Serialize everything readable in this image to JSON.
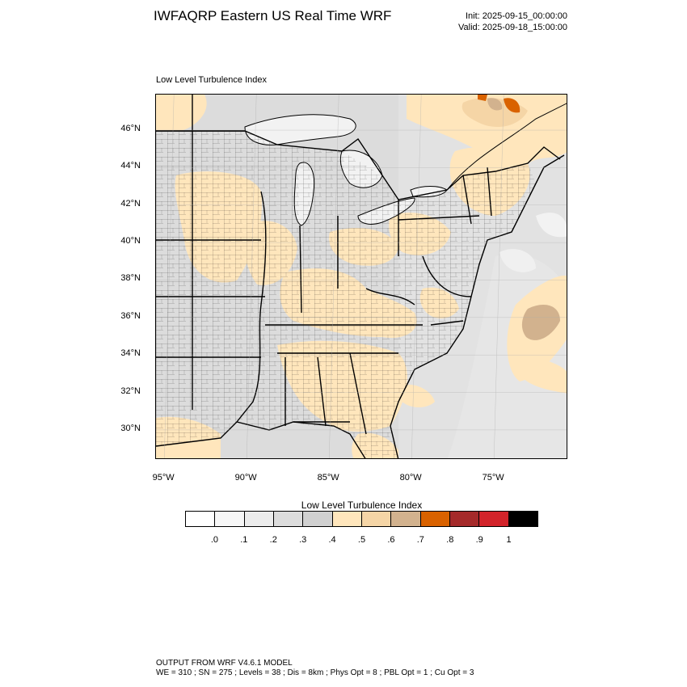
{
  "header": {
    "title": "IWFAQRP Eastern US Real Time WRF",
    "init": "Init: 2025-09-15_00:00:00",
    "valid": "Valid: 2025-09-18_15:00:00"
  },
  "map": {
    "subtitle": "Low Level Turbulence Index",
    "lat_labels": [
      "46°N",
      "44°N",
      "42°N",
      "40°N",
      "38°N",
      "36°N",
      "34°N",
      "32°N",
      "30°N"
    ],
    "lat_values": [
      46,
      44,
      42,
      40,
      38,
      36,
      34,
      32,
      30
    ],
    "lon_labels": [
      "95°W",
      "90°W",
      "85°W",
      "80°W",
      "75°W"
    ],
    "lon_values": [
      -95,
      -90,
      -85,
      -80,
      -75
    ],
    "extent": {
      "lon_min": -95.5,
      "lon_max": -70.5,
      "lat_min": 28.4,
      "lat_max": 47.9
    },
    "colors": {
      "land_gray": "#dcdcdc",
      "light_gray": "#ececec",
      "water": "#f2f2f2",
      "tan": "#ffe6bc",
      "tan_dark": "#f5d5a6",
      "brown": "#d2b28e",
      "orange": "#d96200",
      "state_border": "#000000",
      "county_border": "#000000"
    }
  },
  "legend": {
    "title": "Low Level Turbulence Index",
    "colors": [
      "#ffffff",
      "#f7f7f7",
      "#ececec",
      "#dcdcdc",
      "#d0d0d0",
      "#ffe6bc",
      "#f5d5a6",
      "#d2b28e",
      "#d96200",
      "#a52a2a",
      "#d2232a",
      "#000000"
    ],
    "ticks": [
      ".0",
      ".1",
      ".2",
      ".3",
      ".4",
      ".5",
      ".6",
      ".7",
      ".8",
      ".9",
      "1"
    ]
  },
  "footer": {
    "line1": "OUTPUT FROM WRF V4.6.1 MODEL",
    "line2": "WE = 310 ; SN = 275 ; Levels = 38 ; Dis = 8km ; Phys Opt = 8 ; PBL Opt = 1 ; Cu Opt = 3"
  }
}
